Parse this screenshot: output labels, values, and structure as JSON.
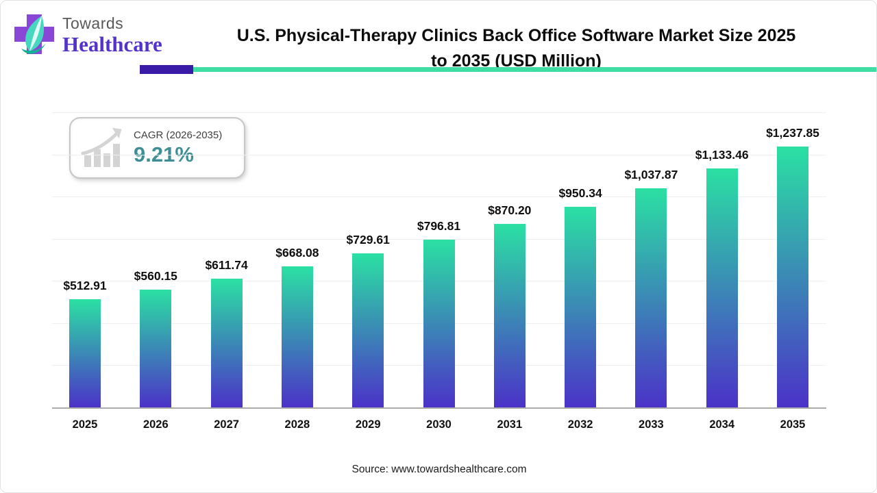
{
  "header": {
    "brand_top": "Towards",
    "brand_bottom": "Healthcare",
    "title": "U.S. Physical-Therapy Clinics Back Office Software Market Size 2025 to 2035 (USD Million)",
    "accent_purple": "#3A1BA8",
    "accent_teal": "#3FDCA3"
  },
  "cagr_badge": {
    "label": "CAGR (2026-2035)",
    "value": "9.21%",
    "value_color": "#3E8E96",
    "icon": "growth-chart-icon"
  },
  "chart_data": {
    "type": "bar",
    "categories": [
      "2025",
      "2026",
      "2027",
      "2028",
      "2029",
      "2030",
      "2031",
      "2032",
      "2033",
      "2034",
      "2035"
    ],
    "values": [
      512.91,
      560.15,
      611.74,
      668.08,
      729.61,
      796.81,
      870.2,
      950.34,
      1037.87,
      1133.46,
      1237.85
    ],
    "value_labels": [
      "$512.91",
      "$560.15",
      "$611.74",
      "$668.08",
      "$729.61",
      "$796.81",
      "$870.20",
      "$950.34",
      "$1,037.87",
      "$1,133.46",
      "$1,237.85"
    ],
    "title": "U.S. Physical-Therapy Clinics Back Office Software Market Size 2025 to 2035 (USD Million)",
    "xlabel": "",
    "ylabel": "",
    "ylim": [
      0,
      1400
    ],
    "grid_step": 200,
    "grid": "horizontal gridlines, no y-axis tick labels",
    "legend": "none",
    "bar_gradient_top": "#2BE0A3",
    "bar_gradient_bottom": "#4B32C8"
  },
  "footer": {
    "source": "Source: www.towardshealthcare.com"
  }
}
